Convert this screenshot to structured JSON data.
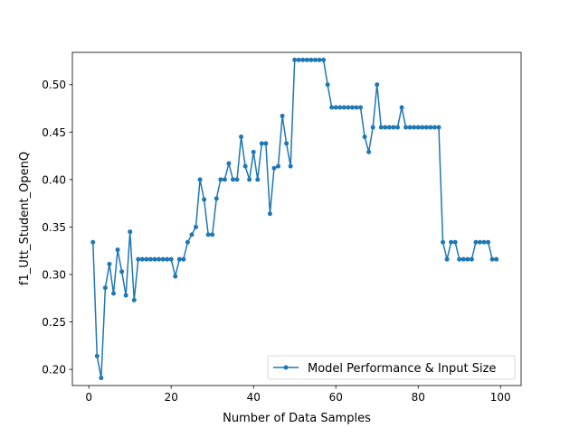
{
  "chart_data": {
    "type": "line",
    "title": "",
    "xlabel": "Number of Data Samples",
    "ylabel": "f1_Utt_Student_OpenQ",
    "xlim": [
      -4,
      105
    ],
    "ylim": [
      0.183,
      0.534
    ],
    "xticks": [
      0,
      20,
      40,
      60,
      80,
      100
    ],
    "yticks": [
      0.2,
      0.25,
      0.3,
      0.35,
      0.4,
      0.45,
      0.5
    ],
    "xtick_labels": [
      "0",
      "20",
      "40",
      "60",
      "80",
      "100"
    ],
    "ytick_labels": [
      "0.20",
      "0.25",
      "0.30",
      "0.35",
      "0.40",
      "0.45",
      "0.50"
    ],
    "grid": false,
    "legend_position": "lower-right",
    "series": [
      {
        "name": "Model Performance & Input Size",
        "color": "#1f77b4",
        "marker": "circle",
        "x": [
          1,
          2,
          3,
          4,
          5,
          6,
          7,
          8,
          9,
          10,
          11,
          12,
          13,
          14,
          15,
          16,
          17,
          18,
          19,
          20,
          21,
          22,
          23,
          24,
          25,
          26,
          27,
          28,
          29,
          30,
          31,
          32,
          33,
          34,
          35,
          36,
          37,
          38,
          39,
          40,
          41,
          42,
          43,
          44,
          45,
          46,
          47,
          48,
          49,
          50,
          51,
          52,
          53,
          54,
          55,
          56,
          57,
          58,
          59,
          60,
          61,
          62,
          63,
          64,
          65,
          66,
          67,
          68,
          69,
          70,
          71,
          72,
          73,
          74,
          75,
          76,
          77,
          78,
          79,
          80,
          81,
          82,
          83,
          84,
          85,
          86,
          87,
          88,
          89,
          90,
          91,
          92,
          93,
          94,
          95,
          96,
          97,
          98,
          99
        ],
        "y": [
          0.334,
          0.214,
          0.191,
          0.286,
          0.311,
          0.28,
          0.326,
          0.303,
          0.278,
          0.345,
          0.273,
          0.316,
          0.316,
          0.316,
          0.316,
          0.316,
          0.316,
          0.316,
          0.316,
          0.316,
          0.298,
          0.316,
          0.316,
          0.334,
          0.342,
          0.35,
          0.4,
          0.379,
          0.342,
          0.342,
          0.38,
          0.4,
          0.4,
          0.417,
          0.4,
          0.4,
          0.445,
          0.414,
          0.4,
          0.429,
          0.4,
          0.438,
          0.438,
          0.364,
          0.412,
          0.414,
          0.467,
          0.438,
          0.414,
          0.526,
          0.526,
          0.526,
          0.526,
          0.526,
          0.526,
          0.526,
          0.526,
          0.5,
          0.476,
          0.476,
          0.476,
          0.476,
          0.476,
          0.476,
          0.476,
          0.476,
          0.445,
          0.429,
          0.455,
          0.5,
          0.455,
          0.455,
          0.455,
          0.455,
          0.455,
          0.476,
          0.455,
          0.455,
          0.455,
          0.455,
          0.455,
          0.455,
          0.455,
          0.455,
          0.455,
          0.334,
          0.316,
          0.334,
          0.334,
          0.316,
          0.316,
          0.316,
          0.316,
          0.334,
          0.334,
          0.334,
          0.334,
          0.316,
          0.316
        ]
      }
    ]
  }
}
